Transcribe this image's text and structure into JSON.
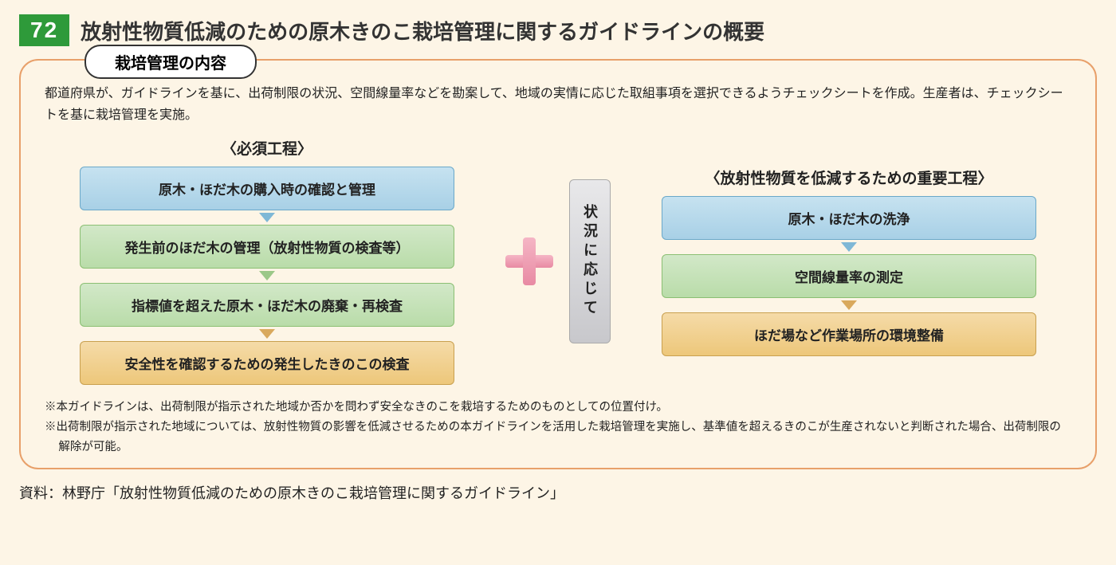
{
  "header": {
    "number": "72",
    "title": "放射性物質低減のための原木きのこ栽培管理に関するガイドラインの概要"
  },
  "panel": {
    "tab": "栽培管理の内容",
    "intro": "都道府県が、ガイドラインを基に、出荷制限の状況、空間線量率などを勘案して、地域の実情に応じた取組事項を選択できるようチェックシートを作成。生産者は、チェックシートを基に栽培管理を実施。",
    "left": {
      "title": "〈必須工程〉",
      "boxes": [
        {
          "text": "原木・ほだ木の購入時の確認と管理",
          "color": "blue"
        },
        {
          "text": "発生前のほだ木の管理（放射性物質の検査等）",
          "color": "green"
        },
        {
          "text": "指標値を超えた原木・ほだ木の廃棄・再検査",
          "color": "green"
        },
        {
          "text": "安全性を確認するための発生したきのこの検査",
          "color": "orange"
        }
      ]
    },
    "situation": "状況に応じて",
    "right": {
      "title": "〈放射性物質を低減するための重要工程〉",
      "boxes": [
        {
          "text": "原木・ほだ木の洗浄",
          "color": "blue"
        },
        {
          "text": "空間線量率の測定",
          "color": "green"
        },
        {
          "text": "ほだ場など作業場所の環境整備",
          "color": "orange"
        }
      ]
    },
    "notes": [
      "※本ガイドラインは、出荷制限が指示された地域か否かを問わず安全なきのこを栽培するためのものとしての位置付け。",
      "※出荷制限が指示された地域については、放射性物質の影響を低減させるための本ガイドラインを活用した栽培管理を実施し、基準値を超えるきのこが生産されないと判断された場合、出荷制限の解除が可能。"
    ]
  },
  "source": "資料：林野庁「放射性物質低減のための原木きのこ栽培管理に関するガイドライン」",
  "colors": {
    "badge_bg": "#2e9a3a",
    "panel_border": "#e8a06a",
    "page_bg": "#fdf5e6",
    "box_blue_bg": "#a8d0e6",
    "box_green_bg": "#b9dca9",
    "box_orange_bg": "#edc77a",
    "plus_color": "#e88aa3"
  }
}
